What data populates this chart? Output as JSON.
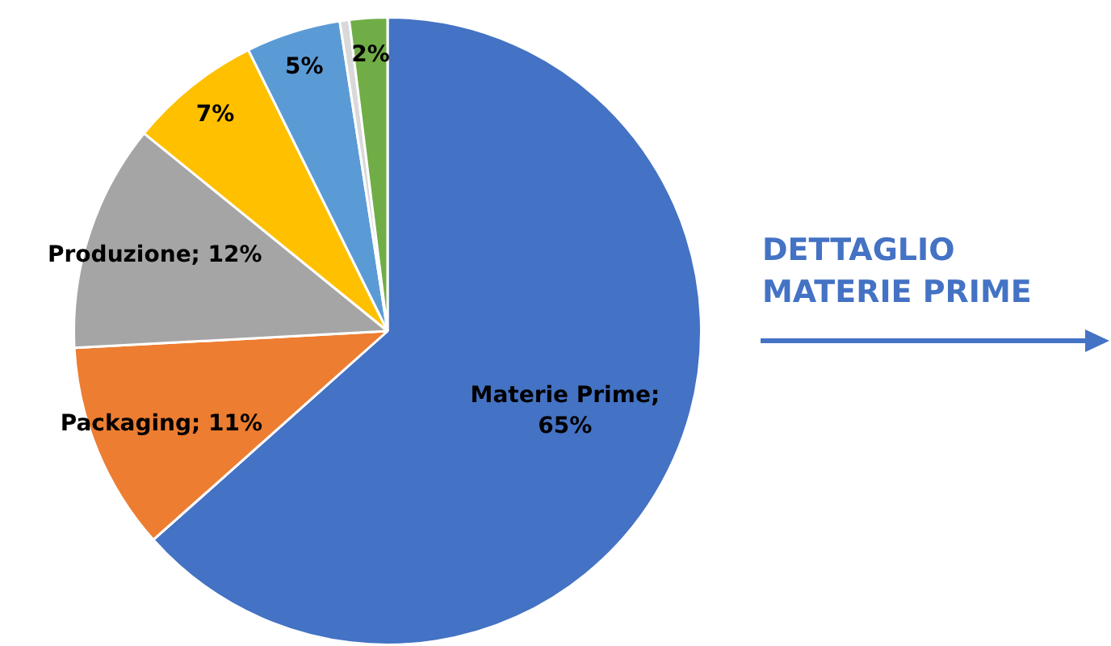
{
  "chart_data": {
    "type": "pie",
    "categories": [
      null,
      null,
      null,
      null,
      null,
      null,
      null
    ],
    "values": [
      65,
      11,
      12,
      7,
      5,
      0.5,
      2
    ],
    "value_labels": [
      "Materie Prime; 65%",
      "Packaging; 11%",
      "Produzione; 12%",
      "7%",
      "5%",
      null,
      "2%"
    ],
    "colors": [
      "#4472c4",
      "#ed7d31",
      "#a5a5a5",
      "#ffc000",
      "#5b9bd5",
      "#d9d9d9",
      "#70ad47"
    ],
    "legend": false,
    "annotations": [
      "DETTAGLIO MATERIE PRIME"
    ]
  }
}
